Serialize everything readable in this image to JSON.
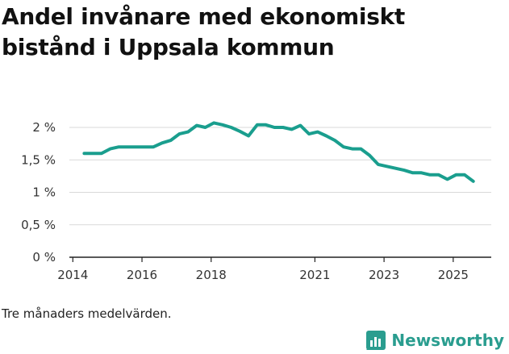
{
  "title": "Andel invånare med ekonomiskt bistånd i Uppsala kommun",
  "note": "Tre månaders medelvärden.",
  "brand": "Newsworthy",
  "colors": {
    "line": "#1a9e8e",
    "grid": "#d9d9d9",
    "axis": "#222222",
    "brand": "#2a9d8f"
  },
  "chart_data": {
    "type": "line",
    "title": "Andel invånare med ekonomiskt bistånd i Uppsala kommun",
    "xlabel": "",
    "ylabel": "",
    "ylim": [
      0,
      2
    ],
    "xlim": [
      2013.9,
      2026.1
    ],
    "y_ticks": [
      0,
      0.5,
      1,
      1.5,
      2
    ],
    "y_tick_labels": [
      "0 %",
      "0,5 %",
      "1 %",
      "1,5 %",
      "2 %"
    ],
    "x_ticks": [
      2014,
      2016,
      2018,
      2021,
      2023,
      2025
    ],
    "x_tick_labels": [
      "2014",
      "2016",
      "2018",
      "2021",
      "2023",
      "2025"
    ],
    "grid": true,
    "series": [
      {
        "name": "Andel invånare med ekonomiskt bistånd",
        "x": [
          2014.33,
          2014.58,
          2014.83,
          2015.08,
          2015.33,
          2015.58,
          2015.83,
          2016.08,
          2016.33,
          2016.58,
          2016.83,
          2017.08,
          2017.33,
          2017.58,
          2017.83,
          2018.08,
          2018.33,
          2018.58,
          2018.83,
          2019.08,
          2019.33,
          2019.58,
          2019.83,
          2020.08,
          2020.33,
          2020.58,
          2020.83,
          2021.08,
          2021.33,
          2021.58,
          2021.83,
          2022.08,
          2022.33,
          2022.58,
          2022.83,
          2023.08,
          2023.33,
          2023.58,
          2023.83,
          2024.08,
          2024.33,
          2024.58,
          2024.83,
          2025.08,
          2025.33,
          2025.58
        ],
        "values": [
          1.6,
          1.6,
          1.6,
          1.67,
          1.7,
          1.7,
          1.7,
          1.7,
          1.7,
          1.76,
          1.8,
          1.9,
          1.93,
          2.03,
          2.0,
          2.07,
          2.04,
          2.0,
          1.94,
          1.87,
          2.04,
          2.04,
          2.0,
          2.0,
          1.97,
          2.03,
          1.9,
          1.93,
          1.87,
          1.8,
          1.7,
          1.67,
          1.67,
          1.57,
          1.43,
          1.4,
          1.37,
          1.34,
          1.3,
          1.3,
          1.27,
          1.27,
          1.2,
          1.27,
          1.27,
          1.17
        ]
      }
    ]
  }
}
